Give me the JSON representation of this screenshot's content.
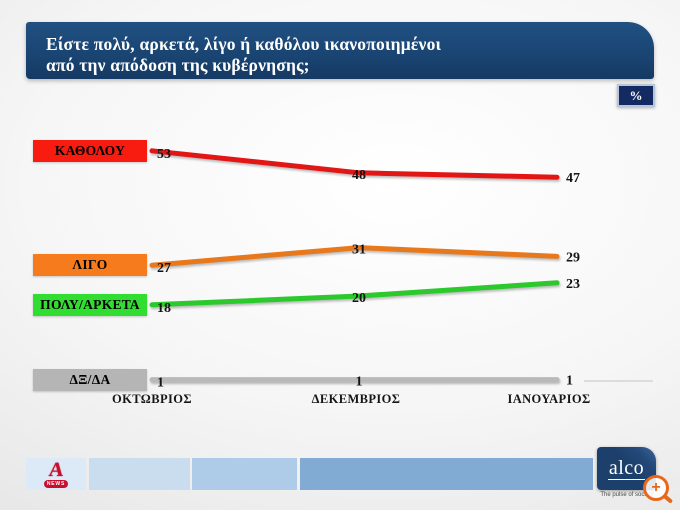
{
  "header": {
    "title_line1": "Είστε πολύ, αρκετά, λίγο ή καθόλου ικανοποιημένοι",
    "title_line2": "από την απόδοση της κυβέρνησης;",
    "unit_badge": "%"
  },
  "chart_data": {
    "type": "line",
    "title": "Είστε πολύ, αρκετά, λίγο ή καθόλου ικανοποιημένοι από την απόδοση της κυβέρνησης;",
    "unit": "%",
    "categories": [
      "ΟΚΤΩΒΡΙΟΣ",
      "ΔΕΚΕΜΒΡΙΟΣ",
      "ΙΑΝΟΥΑΡΙΟΣ"
    ],
    "series": [
      {
        "name": "ΚΑΘΟΛΟΥ",
        "values": [
          53,
          48,
          47
        ],
        "color": "#e31616",
        "label_bg": "#f71b10"
      },
      {
        "name": "ΛΙΓΟ",
        "values": [
          27,
          31,
          29
        ],
        "color": "#e8781c",
        "label_bg": "#f57b1d"
      },
      {
        "name": "ΠΟΛΥ/ΑΡΚΕΤΑ",
        "values": [
          18,
          20,
          23
        ],
        "color": "#2cc92c",
        "label_bg": "#32dd32"
      },
      {
        "name": "ΔΞ/ΔΑ",
        "values": [
          1,
          1,
          1
        ],
        "color": "#b9b9b9",
        "label_bg": "#b5b5b5"
      }
    ],
    "ylim": [
      0,
      60
    ],
    "grid": false,
    "legend_position": "left",
    "value_labels": true
  },
  "footer": {
    "bar_colors": [
      "#dce9f6",
      "#c9ddef",
      "#aecbe7",
      "#81abd3"
    ],
    "alpha_logo": {
      "letter": "A",
      "badge_text": "NEWS",
      "color": "#c8102e"
    },
    "alco_logo": {
      "name": "alco",
      "tagline": "The pulse of society",
      "color": "#1d3f6b"
    },
    "magnifier_color": "#e8681b"
  }
}
